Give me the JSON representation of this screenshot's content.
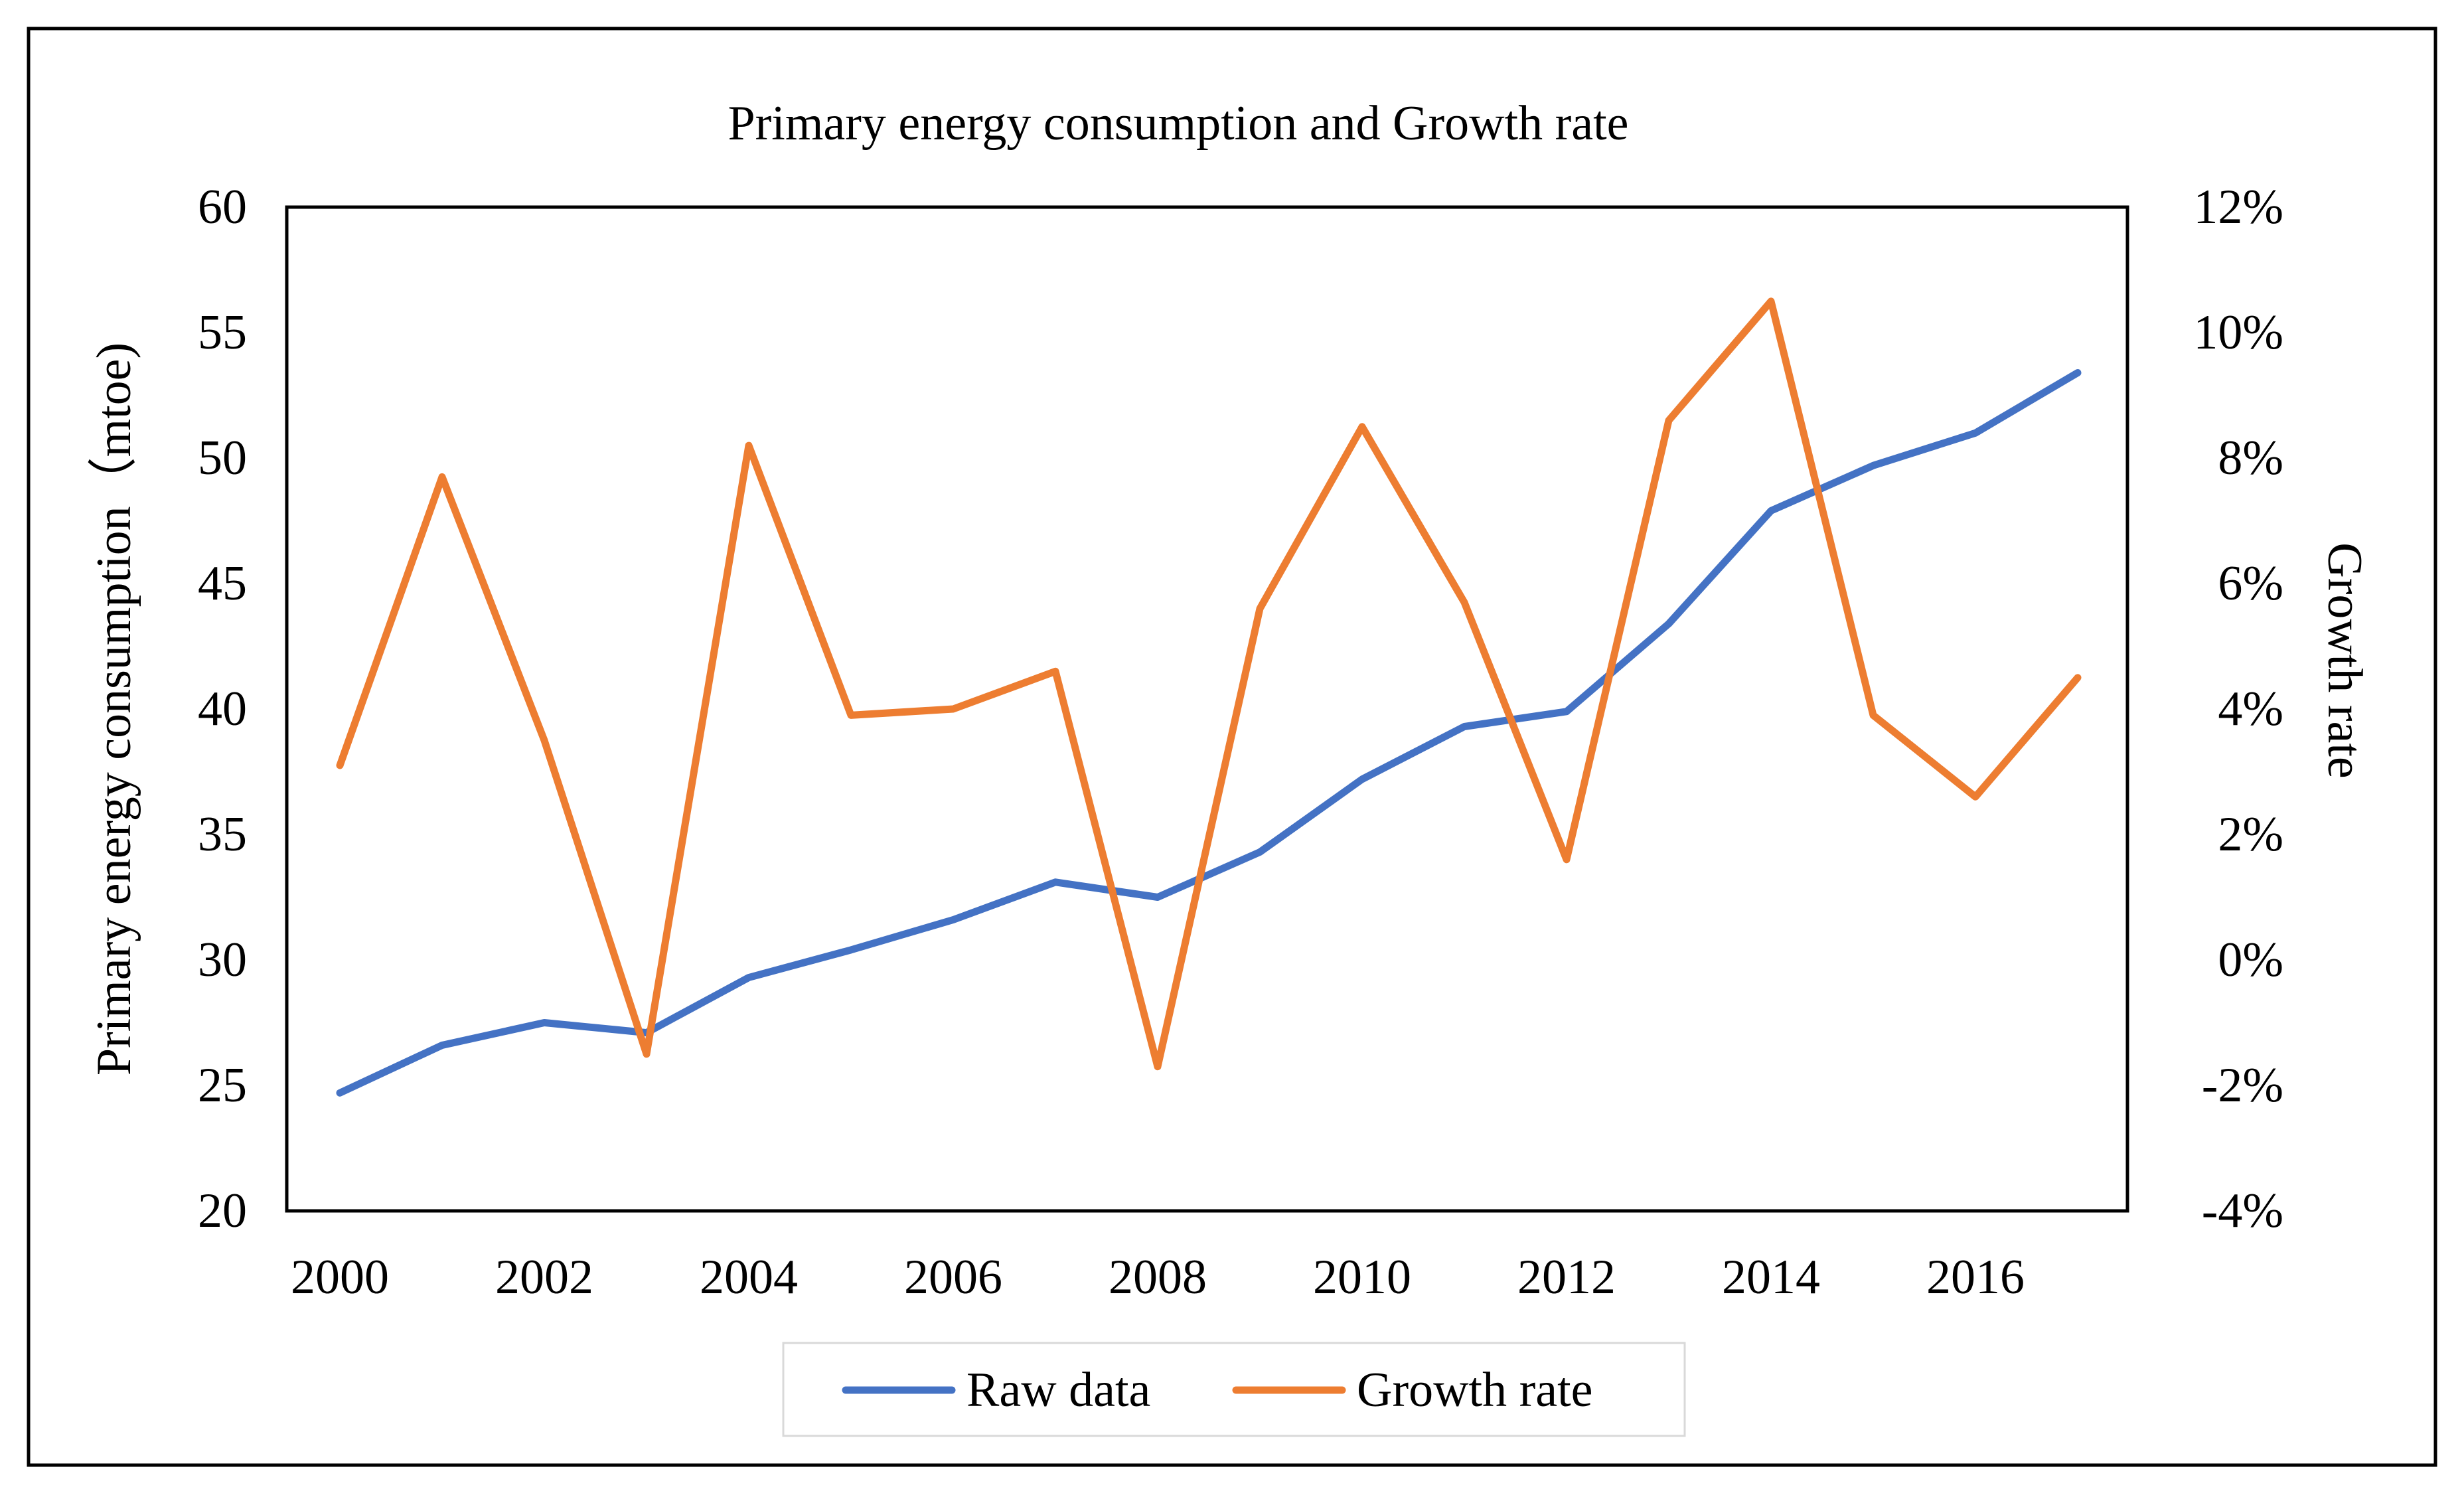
{
  "chart_data": {
    "type": "line",
    "title": "Primary energy consumption and Growth rate",
    "ylabel": "Primary energy consumption（mtoe)",
    "y2label": "Growth rate",
    "xlabel": "",
    "ylim": [
      20,
      60
    ],
    "y2lim": [
      -0.04,
      0.12
    ],
    "grid": false,
    "legend_position": "bottom",
    "x": [
      2000,
      2001,
      2002,
      2003,
      2004,
      2005,
      2006,
      2007,
      2008,
      2009,
      2010,
      2011,
      2012,
      2013,
      2014,
      2015,
      2016,
      2017
    ],
    "x_tick_labels": [
      "2000",
      "2002",
      "2004",
      "2006",
      "2008",
      "2010",
      "2012",
      "2014",
      "2016"
    ],
    "y_tick_labels": [
      "60",
      "55",
      "50",
      "45",
      "40",
      "35",
      "30",
      "25",
      "20"
    ],
    "y2_tick_labels": [
      "12%",
      "10%",
      "8%",
      "6%",
      "4%",
      "2%",
      "0%",
      "-2%",
      "-4%"
    ],
    "series": [
      {
        "name": "Raw data",
        "axis": "left",
        "color": "#4472C4",
        "values": [
          24.7,
          26.6,
          27.5,
          27.1,
          29.3,
          30.4,
          31.6,
          33.1,
          32.5,
          34.3,
          37.2,
          39.3,
          39.9,
          43.4,
          47.9,
          49.7,
          51.0,
          53.4
        ]
      },
      {
        "name": "Growth rate",
        "axis": "right",
        "color": "#ED7D31",
        "values": [
          0.031,
          0.077,
          0.035,
          -0.015,
          0.082,
          0.039,
          0.04,
          0.046,
          -0.017,
          0.056,
          0.085,
          0.057,
          0.016,
          0.086,
          0.105,
          0.039,
          0.026,
          0.045
        ]
      }
    ]
  }
}
